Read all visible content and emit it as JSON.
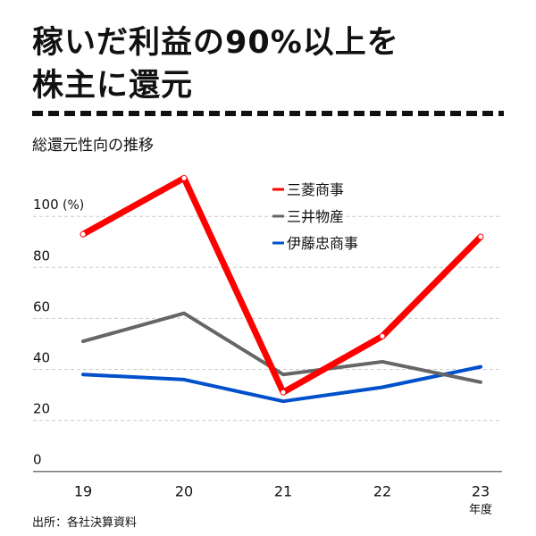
{
  "chart_data": {
    "type": "line",
    "title_lines": [
      "稼いだ利益の90%以上を",
      "株主に還元"
    ],
    "subtitle": "総還元性向の推移",
    "source": "出所：各社決算資料",
    "xlabel": "年度",
    "ylabel": "(%)",
    "categories": [
      "19",
      "20",
      "21",
      "22",
      "23"
    ],
    "yticks": [
      "0",
      "20",
      "40",
      "60",
      "80",
      "100"
    ],
    "ylim": [
      0,
      120
    ],
    "grid": true,
    "legend_position": "top-right",
    "series": [
      {
        "name": "三菱商事",
        "color": "#ff0000",
        "values": [
          93,
          115,
          31,
          53,
          92
        ]
      },
      {
        "name": "三井物産",
        "color": "#666666",
        "values": [
          51,
          62,
          38,
          43,
          35
        ]
      },
      {
        "name": "伊藤忠商事",
        "color": "#0050cc",
        "values": [
          38,
          36,
          27.5,
          33,
          41
        ]
      }
    ]
  }
}
